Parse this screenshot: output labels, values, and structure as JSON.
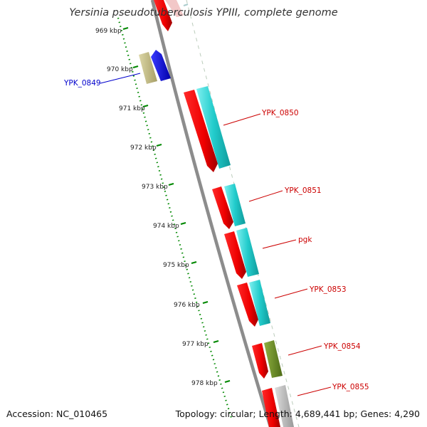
{
  "title": "Yersinia pseudotuberculosis YPIII, complete genome",
  "footer": {
    "accession": "Accession: NC_010465",
    "summary": "Topology: circular; Length: 4,689,441 bp; Genes: 4,290"
  },
  "ruler": {
    "ticks": [
      "969 kbp",
      "970 kbp",
      "971 kbp",
      "972 kbp",
      "973 kbp",
      "974 kbp",
      "975 kbp",
      "976 kbp",
      "977 kbp",
      "978 kbp"
    ]
  },
  "genes": [
    {
      "label": "YPK_0849",
      "color": "#0000cc"
    },
    {
      "label": "YPK_0850",
      "color": "#cc0000"
    },
    {
      "label": "YPK_0851",
      "color": "#cc0000"
    },
    {
      "label": "pgk",
      "color": "#cc0000"
    },
    {
      "label": "YPK_0853",
      "color": "#cc0000"
    },
    {
      "label": "YPK_0854",
      "color": "#cc0000"
    },
    {
      "label": "YPK_0855",
      "color": "#cc0000"
    }
  ],
  "colors": {
    "cds_red": "#ee0000",
    "cds_blue": "#0000dd",
    "feature_cyan": "#22cccc",
    "feature_olive": "#6b8e23",
    "feature_khaki": "#c8c088",
    "feature_gray": "#bbbbbb",
    "backbone": "#888888",
    "ruler_green": "#007700"
  }
}
